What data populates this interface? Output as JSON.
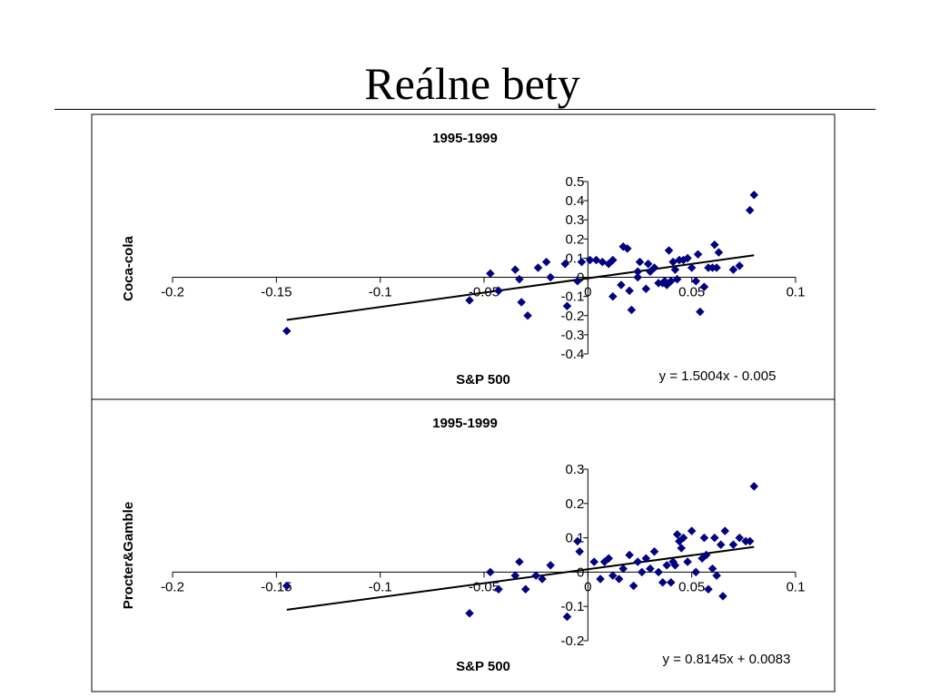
{
  "slide": {
    "title": "Reálne bety"
  },
  "chart_data": [
    {
      "type": "scatter",
      "title": "1995-1999",
      "xlabel": "S&P 500",
      "ylabel": "Coca-cola",
      "xlim": [
        -0.2,
        0.1
      ],
      "ylim": [
        -0.4,
        0.5
      ],
      "xticks": [
        "-0.2",
        "-0.15",
        "-0.1",
        "-0.05",
        "0",
        "0.05",
        "0.1"
      ],
      "yticks": [
        "0.5",
        "0.4",
        "0.3",
        "0.2",
        "0.1",
        "0",
        "-0.1",
        "-0.2",
        "-0.3",
        "-0.4"
      ],
      "marker_color": "#000080",
      "trendline": {
        "equation": "y = 1.5004x - 0.005",
        "slope": 1.5004,
        "intercept": -0.005,
        "x_range": [
          -0.145,
          0.08
        ]
      },
      "points": [
        [
          -0.145,
          -0.28
        ],
        [
          -0.057,
          -0.12
        ],
        [
          -0.047,
          0.02
        ],
        [
          -0.043,
          -0.07
        ],
        [
          -0.035,
          0.04
        ],
        [
          -0.033,
          -0.01
        ],
        [
          -0.032,
          -0.13
        ],
        [
          -0.029,
          -0.2
        ],
        [
          -0.024,
          0.05
        ],
        [
          -0.02,
          0.08
        ],
        [
          -0.018,
          0.0
        ],
        [
          -0.011,
          0.07
        ],
        [
          -0.01,
          -0.15
        ],
        [
          -0.005,
          -0.02
        ],
        [
          -0.003,
          0.08
        ],
        [
          0.001,
          0.09
        ],
        [
          0.004,
          0.09
        ],
        [
          0.007,
          0.08
        ],
        [
          0.01,
          0.07
        ],
        [
          0.012,
          0.09
        ],
        [
          0.012,
          -0.1
        ],
        [
          0.016,
          -0.04
        ],
        [
          0.017,
          0.16
        ],
        [
          0.019,
          0.15
        ],
        [
          0.02,
          -0.07
        ],
        [
          0.021,
          -0.17
        ],
        [
          0.024,
          0.0
        ],
        [
          0.024,
          0.03
        ],
        [
          0.025,
          0.08
        ],
        [
          0.028,
          -0.06
        ],
        [
          0.029,
          0.07
        ],
        [
          0.03,
          0.03
        ],
        [
          0.032,
          0.05
        ],
        [
          0.034,
          -0.03
        ],
        [
          0.036,
          -0.03
        ],
        [
          0.037,
          -0.02
        ],
        [
          0.038,
          -0.04
        ],
        [
          0.039,
          0.14
        ],
        [
          0.04,
          -0.02
        ],
        [
          0.041,
          0.08
        ],
        [
          0.042,
          0.04
        ],
        [
          0.043,
          -0.01
        ],
        [
          0.044,
          0.09
        ],
        [
          0.046,
          0.09
        ],
        [
          0.048,
          0.1
        ],
        [
          0.05,
          0.05
        ],
        [
          0.052,
          -0.02
        ],
        [
          0.053,
          0.12
        ],
        [
          0.054,
          -0.18
        ],
        [
          0.056,
          -0.05
        ],
        [
          0.058,
          0.05
        ],
        [
          0.06,
          0.05
        ],
        [
          0.061,
          0.17
        ],
        [
          0.062,
          0.05
        ],
        [
          0.063,
          0.13
        ],
        [
          0.07,
          0.04
        ],
        [
          0.073,
          0.06
        ],
        [
          0.078,
          0.35
        ],
        [
          0.08,
          0.43
        ]
      ]
    },
    {
      "type": "scatter",
      "title": "1995-1999",
      "xlabel": "S&P 500",
      "ylabel": "Procter&Gamble",
      "xlim": [
        -0.2,
        0.1
      ],
      "ylim": [
        -0.2,
        0.3
      ],
      "xticks": [
        "-0.2",
        "-0.15",
        "-0.1",
        "-0.05",
        "0",
        "0.05",
        "0.1"
      ],
      "yticks": [
        "0.3",
        "0.2",
        "0.1",
        "0",
        "-0.1",
        "-0.2"
      ],
      "marker_color": "#000080",
      "trendline": {
        "equation": "y = 0.8145x + 0.0083",
        "slope": 0.8145,
        "intercept": 0.0083,
        "x_range": [
          -0.145,
          0.08
        ]
      },
      "points": [
        [
          -0.145,
          -0.04
        ],
        [
          -0.057,
          -0.12
        ],
        [
          -0.047,
          0.0
        ],
        [
          -0.043,
          -0.05
        ],
        [
          -0.035,
          -0.01
        ],
        [
          -0.033,
          0.03
        ],
        [
          -0.03,
          -0.05
        ],
        [
          -0.025,
          -0.01
        ],
        [
          -0.022,
          -0.02
        ],
        [
          -0.018,
          0.02
        ],
        [
          -0.01,
          -0.13
        ],
        [
          -0.005,
          0.09
        ],
        [
          -0.004,
          0.06
        ],
        [
          0.003,
          0.03
        ],
        [
          0.006,
          -0.02
        ],
        [
          0.008,
          0.03
        ],
        [
          0.01,
          0.04
        ],
        [
          0.012,
          -0.01
        ],
        [
          0.015,
          -0.02
        ],
        [
          0.017,
          0.01
        ],
        [
          0.02,
          0.05
        ],
        [
          0.022,
          -0.04
        ],
        [
          0.024,
          0.03
        ],
        [
          0.026,
          0.0
        ],
        [
          0.028,
          0.04
        ],
        [
          0.03,
          0.01
        ],
        [
          0.032,
          0.06
        ],
        [
          0.034,
          0.0
        ],
        [
          0.036,
          -0.03
        ],
        [
          0.038,
          0.02
        ],
        [
          0.04,
          -0.03
        ],
        [
          0.041,
          0.03
        ],
        [
          0.042,
          0.02
        ],
        [
          0.043,
          0.11
        ],
        [
          0.044,
          0.09
        ],
        [
          0.045,
          0.07
        ],
        [
          0.046,
          0.1
        ],
        [
          0.048,
          0.03
        ],
        [
          0.05,
          0.12
        ],
        [
          0.052,
          0.0
        ],
        [
          0.055,
          0.04
        ],
        [
          0.056,
          0.1
        ],
        [
          0.057,
          0.05
        ],
        [
          0.058,
          -0.05
        ],
        [
          0.06,
          0.01
        ],
        [
          0.061,
          0.1
        ],
        [
          0.062,
          -0.01
        ],
        [
          0.064,
          0.08
        ],
        [
          0.065,
          -0.07
        ],
        [
          0.066,
          0.12
        ],
        [
          0.07,
          0.08
        ],
        [
          0.073,
          0.1
        ],
        [
          0.076,
          0.09
        ],
        [
          0.078,
          0.09
        ],
        [
          0.08,
          0.25
        ]
      ]
    }
  ]
}
